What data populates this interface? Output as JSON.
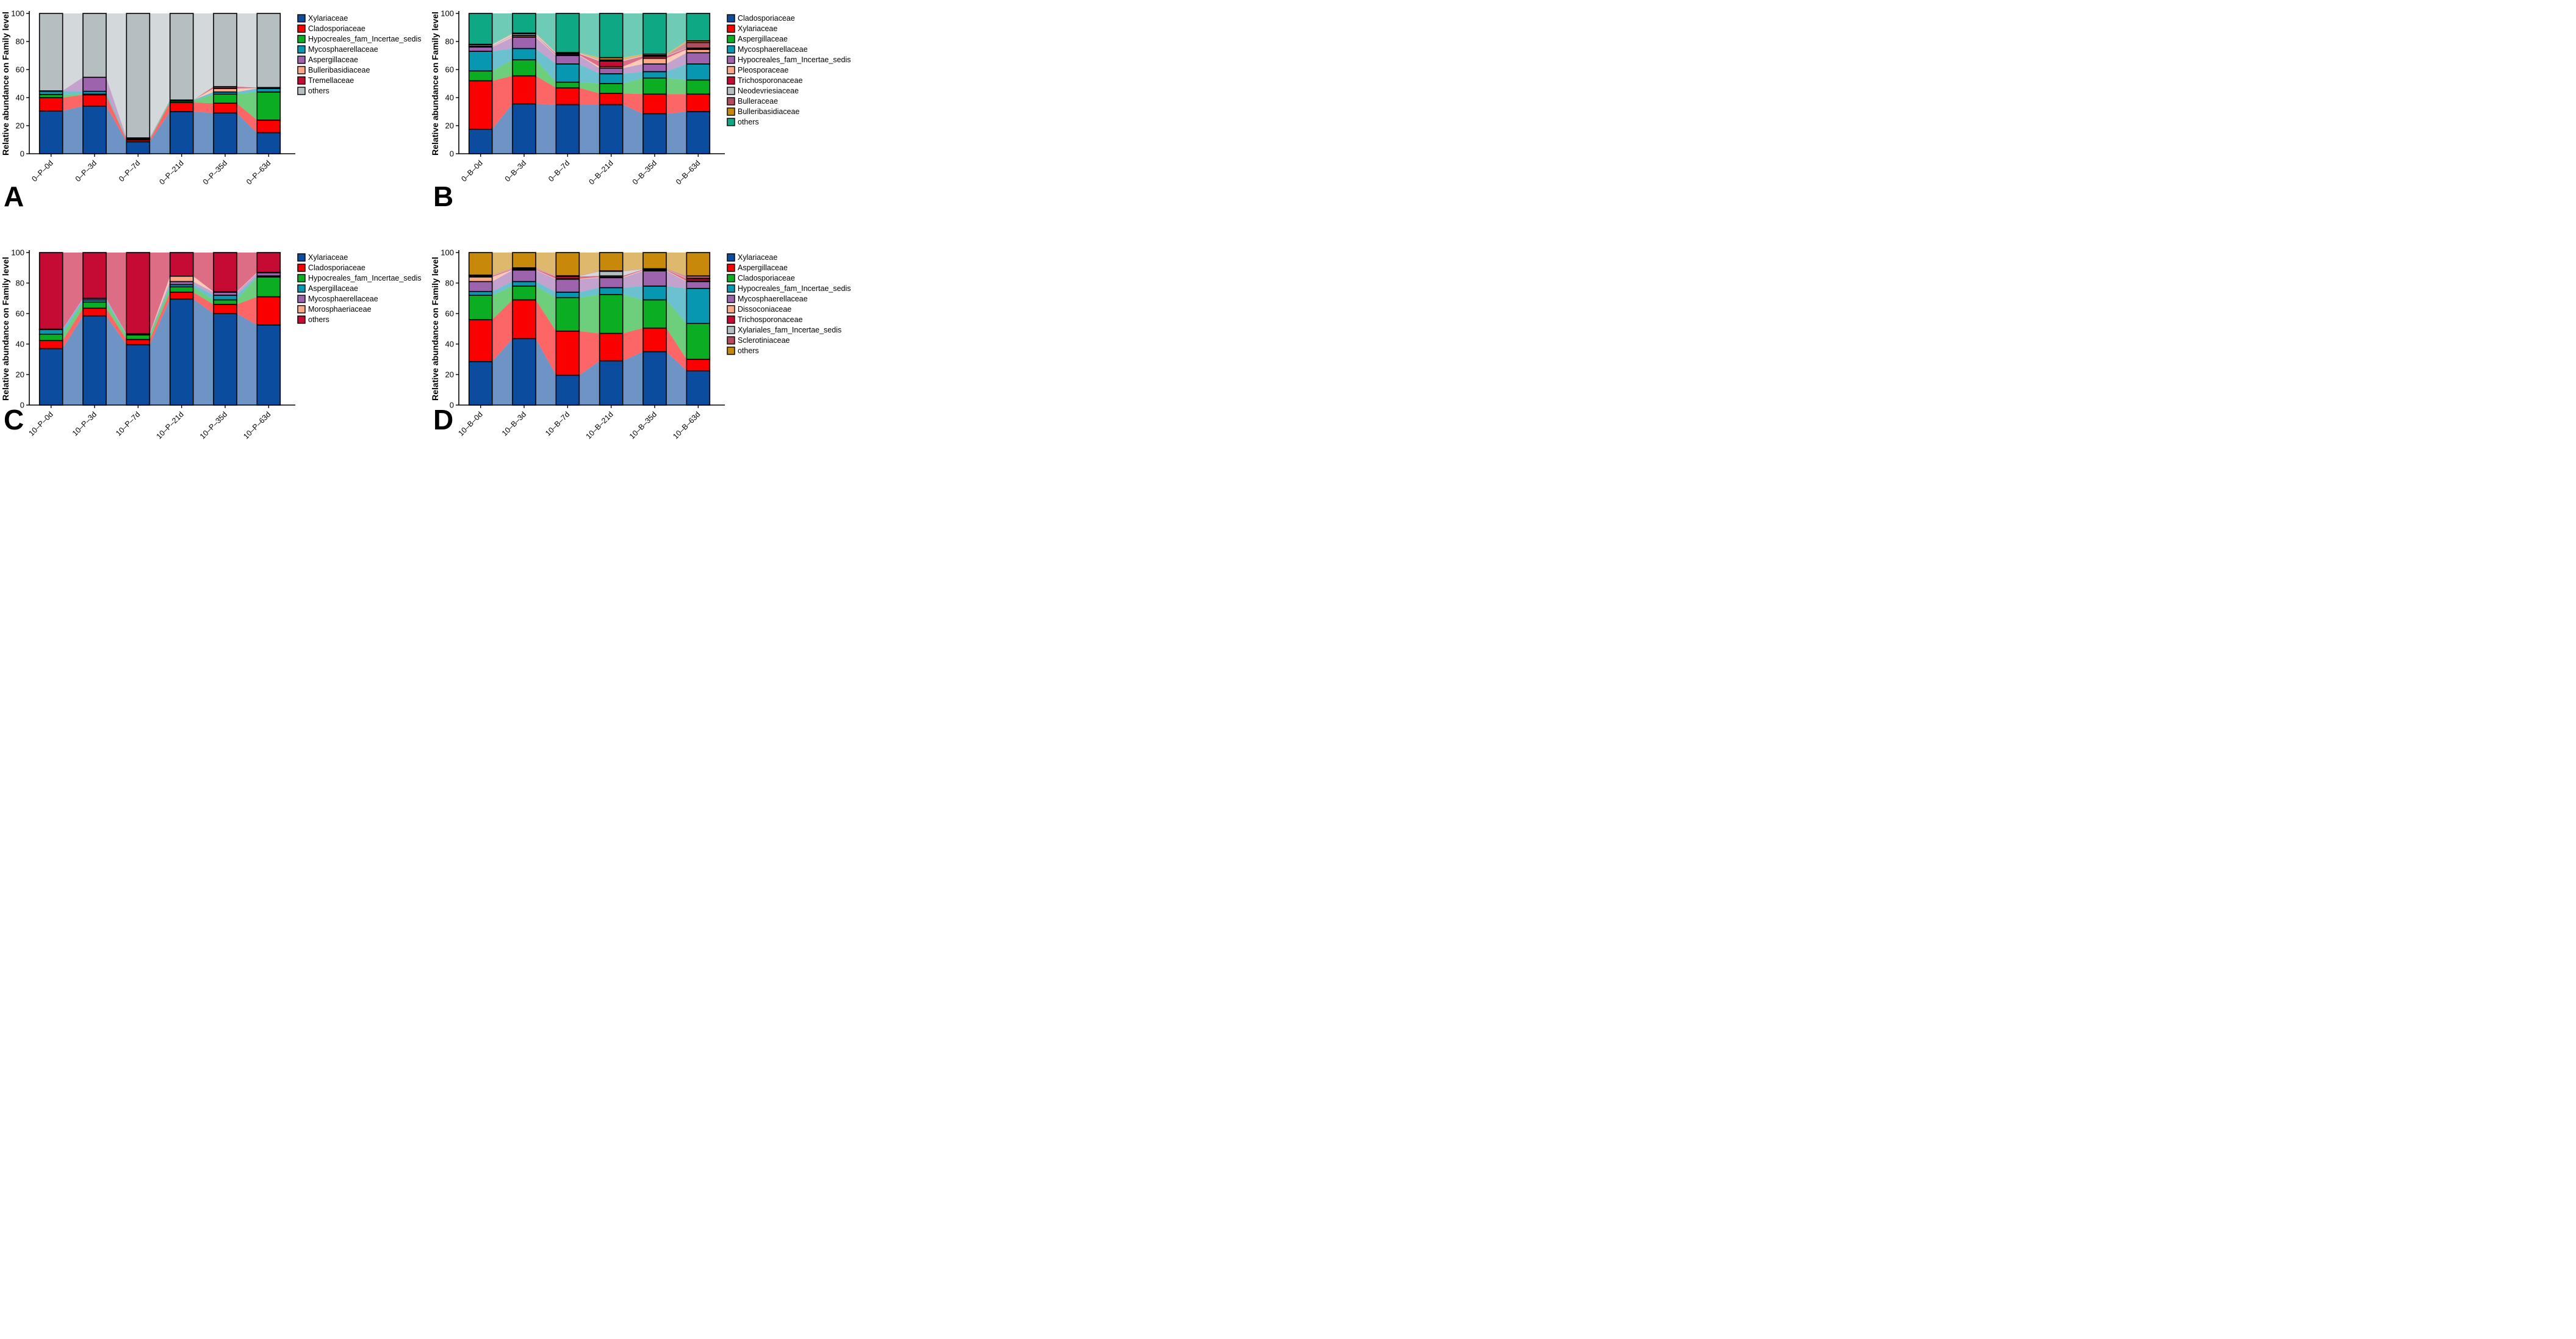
{
  "figure": {
    "background": "#ffffff",
    "axis_color": "#000000",
    "bar_outline": "#000000",
    "flow_opacity": 0.6
  },
  "chart_data": [
    {
      "panel": "A",
      "panel_label": "A",
      "type": "stacked-bar-alluvial",
      "title": "",
      "xlabel": "",
      "ylabel": "Relative abundance on Family level",
      "ylim": [
        0,
        100
      ],
      "yticks": [
        0,
        20,
        40,
        60,
        80,
        100
      ],
      "grid": false,
      "legend_position": "right",
      "categories": [
        "0–P–0d",
        "0–P–3d",
        "0–P–7d",
        "0–P–21d",
        "0–P–35d",
        "0–P–63d"
      ],
      "series": [
        {
          "name": "Xylariaceae",
          "color": "#0C4C9E",
          "values": [
            30.5,
            34.0,
            8.5,
            30.0,
            29.0,
            15.0
          ]
        },
        {
          "name": "Cladosporiaceae",
          "color": "#FB0000",
          "values": [
            9.5,
            8.0,
            1.3,
            6.5,
            7.0,
            9.0
          ]
        },
        {
          "name": "Hypocreales_fam_Incertae_sedis",
          "color": "#0BAD23",
          "values": [
            2.2,
            0.5,
            0.3,
            1.0,
            6.5,
            20.0
          ]
        },
        {
          "name": "Mycosphaerellaceae",
          "color": "#0897B0",
          "values": [
            2.3,
            2.0,
            0.6,
            0.8,
            1.5,
            2.5
          ]
        },
        {
          "name": "Aspergillaceae",
          "color": "#9D64AD",
          "values": [
            0,
            10.0,
            0.3,
            0,
            0,
            0
          ]
        },
        {
          "name": "Bulleribasidiaceae",
          "color": "#FCA887",
          "values": [
            0,
            0,
            0,
            0,
            2.5,
            0.3
          ]
        },
        {
          "name": "Tremellaceae",
          "color": "#C50B33",
          "values": [
            0.3,
            0,
            0.3,
            0,
            1.3,
            0.4
          ]
        },
        {
          "name": "others",
          "color": "#B5BFC2",
          "values": [
            55.2,
            45.5,
            88.7,
            61.7,
            52.2,
            52.8
          ]
        }
      ]
    },
    {
      "panel": "B",
      "panel_label": "B",
      "type": "stacked-bar-alluvial",
      "title": "",
      "xlabel": "",
      "ylabel": "Relative abundance on Family level",
      "ylim": [
        0,
        100
      ],
      "yticks": [
        0,
        20,
        40,
        60,
        80,
        100
      ],
      "grid": false,
      "legend_position": "right",
      "categories": [
        "0–B–0d",
        "0–B–3d",
        "0–B–7d",
        "0–B–21d",
        "0–B–35d",
        "0–B–63d"
      ],
      "series": [
        {
          "name": "Cladosporiaceae",
          "color": "#0C4C9E",
          "values": [
            17.5,
            35.5,
            35.0,
            35.0,
            28.5,
            30.0
          ]
        },
        {
          "name": "Xylariaceae",
          "color": "#FB0000",
          "values": [
            34.5,
            20.0,
            12.0,
            8.0,
            14.0,
            12.5
          ]
        },
        {
          "name": "Aspergillaceae",
          "color": "#0BAD23",
          "values": [
            7.0,
            11.5,
            4.0,
            7.0,
            11.5,
            10.0
          ]
        },
        {
          "name": "Mycosphaerellaceae",
          "color": "#0897B0",
          "values": [
            14.0,
            8.0,
            13.0,
            7.0,
            4.5,
            11.5
          ]
        },
        {
          "name": "Hypocreales_fam_Incertae_sedis",
          "color": "#9D64AD",
          "values": [
            3.0,
            8.0,
            6.0,
            4.0,
            5.5,
            8.0
          ]
        },
        {
          "name": "Pleosporaceae",
          "color": "#FCA887",
          "values": [
            0.4,
            1.0,
            0.4,
            1.0,
            4.0,
            2.3
          ]
        },
        {
          "name": "Trichosporonaceae",
          "color": "#C50B33",
          "values": [
            0.3,
            0.3,
            0.8,
            4.0,
            1.5,
            0.8
          ]
        },
        {
          "name": "Neodevriesiaceae",
          "color": "#B5BFC2",
          "values": [
            1.0,
            1.2,
            0.6,
            0.5,
            0.4,
            0.2
          ]
        },
        {
          "name": "Bulleraceae",
          "color": "#B34B5F",
          "values": [
            0.2,
            0.3,
            0.2,
            0.3,
            0.2,
            4.0
          ]
        },
        {
          "name": "Bulleribasidiaceae",
          "color": "#C8890B",
          "values": [
            0.1,
            0.2,
            0.2,
            1.7,
            0.9,
            1.2
          ]
        },
        {
          "name": "others",
          "color": "#0EA885",
          "values": [
            22.0,
            14.0,
            27.8,
            31.5,
            29.0,
            19.5
          ]
        }
      ]
    },
    {
      "panel": "C",
      "panel_label": "C",
      "type": "stacked-bar-alluvial",
      "title": "",
      "xlabel": "",
      "ylabel": "Relative abundance on Family level",
      "ylim": [
        0,
        100
      ],
      "yticks": [
        0,
        20,
        40,
        60,
        80,
        100
      ],
      "grid": false,
      "legend_position": "right",
      "categories": [
        "10–P–0d",
        "10–P–3d",
        "10–P–7d",
        "10–P–21d",
        "10–P–35d",
        "10–P–63d"
      ],
      "series": [
        {
          "name": "Xylariaceae",
          "color": "#0C4C9E",
          "values": [
            37.0,
            58.5,
            39.5,
            69.5,
            60.0,
            52.5
          ]
        },
        {
          "name": "Cladosporiaceae",
          "color": "#FB0000",
          "values": [
            5.3,
            5.0,
            3.5,
            4.5,
            6.0,
            18.5
          ]
        },
        {
          "name": "Hypocreales_fam_Incertae_sedis",
          "color": "#0BAD23",
          "values": [
            4.2,
            4.0,
            3.0,
            3.5,
            3.0,
            13.0
          ]
        },
        {
          "name": "Aspergillaceae",
          "color": "#0897B0",
          "values": [
            3.0,
            1.5,
            0.4,
            1.5,
            3.0,
            0.7
          ]
        },
        {
          "name": "Mycosphaerellaceae",
          "color": "#9D64AD",
          "values": [
            0.3,
            1.0,
            0.3,
            2.0,
            2.0,
            2.0
          ]
        },
        {
          "name": "Morosphaeriaceae",
          "color": "#FCA887",
          "values": [
            0,
            0,
            0,
            3.5,
            0.3,
            0.3
          ]
        },
        {
          "name": "others",
          "color": "#C50B33",
          "values": [
            50.2,
            30.0,
            53.3,
            15.5,
            25.7,
            13.0
          ]
        }
      ]
    },
    {
      "panel": "D",
      "panel_label": "D",
      "type": "stacked-bar-alluvial",
      "title": "",
      "xlabel": "",
      "ylabel": "Relative abundance on Family level",
      "ylim": [
        0,
        100
      ],
      "yticks": [
        0,
        20,
        40,
        60,
        80,
        100
      ],
      "grid": false,
      "legend_position": "right",
      "categories": [
        "10–B–0d",
        "10–B–3d",
        "10–B–7d",
        "10–B–21d",
        "10–B–35d",
        "10–B–63d"
      ],
      "series": [
        {
          "name": "Xylariaceae",
          "color": "#0C4C9E",
          "values": [
            28.5,
            43.5,
            19.5,
            29.0,
            35.0,
            22.5
          ]
        },
        {
          "name": "Aspergillaceae",
          "color": "#FB0000",
          "values": [
            27.5,
            25.5,
            29.0,
            18.0,
            15.5,
            7.5
          ]
        },
        {
          "name": "Cladosporiaceae",
          "color": "#0BAD23",
          "values": [
            16.0,
            9.0,
            22.0,
            25.5,
            18.5,
            23.5
          ]
        },
        {
          "name": "Hypocreales_fam_Incertae_sedis",
          "color": "#0897B0",
          "values": [
            2.5,
            3.0,
            3.5,
            4.5,
            9.0,
            23.0
          ]
        },
        {
          "name": "Mycosphaerellaceae",
          "color": "#9D64AD",
          "values": [
            6.5,
            7.5,
            8.5,
            6.5,
            10.0,
            4.5
          ]
        },
        {
          "name": "Dissoconiaceae",
          "color": "#FCA887",
          "values": [
            3.0,
            0.3,
            0.3,
            0.4,
            0.4,
            0.3
          ]
        },
        {
          "name": "Trichosporonaceae",
          "color": "#C50B33",
          "values": [
            0.7,
            0.5,
            1.5,
            0.8,
            0.5,
            1.5
          ]
        },
        {
          "name": "Xylariales_fam_Incertae_sedis",
          "color": "#B5BFC2",
          "values": [
            0.2,
            0.2,
            0.2,
            3.0,
            0.2,
            0.2
          ]
        },
        {
          "name": "Sclerotiniaceae",
          "color": "#B34B5F",
          "values": [
            0.3,
            0.5,
            0.3,
            0.3,
            0.3,
            1.7
          ]
        },
        {
          "name": "others",
          "color": "#C8890B",
          "values": [
            14.8,
            10.0,
            15.2,
            12.0,
            10.6,
            15.3
          ]
        }
      ]
    }
  ]
}
